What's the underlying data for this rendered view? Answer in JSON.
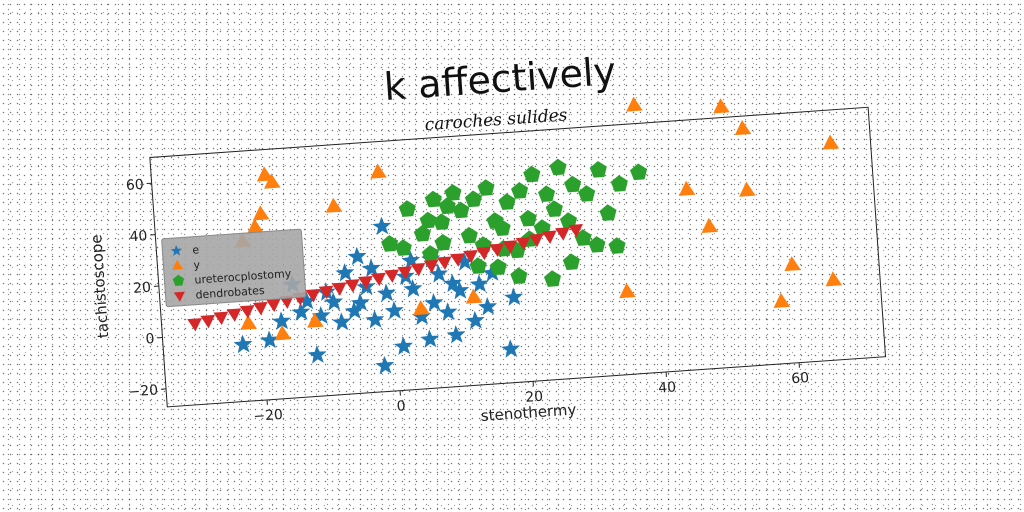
{
  "chart_data": {
    "type": "scatter",
    "title": "k affectively",
    "subtitle": "caroches sulides",
    "xlabel": "stenothermy",
    "ylabel": "tachistoscope",
    "xlim": [
      -35,
      73
    ],
    "ylim": [
      -27,
      70
    ],
    "xticks": [
      -20,
      0,
      20,
      40,
      60
    ],
    "yticks": [
      -20,
      0,
      20,
      40,
      60
    ],
    "grid": false,
    "legend_position": "center-left",
    "series": [
      {
        "name": "e",
        "color": "#1f77b4",
        "marker": "star",
        "points": [
          [
            -23,
            -5
          ],
          [
            -19,
            -4
          ],
          [
            -17,
            3
          ],
          [
            -14,
            6
          ],
          [
            -13,
            10
          ],
          [
            -12,
            -11
          ],
          [
            -11,
            4
          ],
          [
            -10,
            13
          ],
          [
            -9,
            9
          ],
          [
            -8,
            1
          ],
          [
            -7,
            20
          ],
          [
            -6,
            5
          ],
          [
            -5,
            26
          ],
          [
            -4,
            14
          ],
          [
            -3,
            21
          ],
          [
            -3,
            1
          ],
          [
            -2,
            -17
          ],
          [
            -1,
            37
          ],
          [
            0,
            4
          ],
          [
            1,
            -10
          ],
          [
            2,
            17
          ],
          [
            3,
            12
          ],
          [
            4,
            1
          ],
          [
            5,
            -8
          ],
          [
            6,
            6
          ],
          [
            7,
            17
          ],
          [
            8,
            2
          ],
          [
            9,
            -7
          ],
          [
            10,
            10
          ],
          [
            11,
            21
          ],
          [
            12,
            -2
          ],
          [
            13,
            12
          ],
          [
            15,
            16
          ],
          [
            17,
            -14
          ],
          [
            18,
            6
          ],
          [
            6,
            23
          ],
          [
            -5,
            8
          ],
          [
            -15,
            17
          ],
          [
            9,
            13
          ],
          [
            3,
            23
          ],
          [
            14,
            3
          ],
          [
            -1,
            11
          ]
        ]
      },
      {
        "name": "y",
        "color": "#ff7f0e",
        "marker": "triangle",
        "points": [
          [
            -22,
            35
          ],
          [
            -20,
            40
          ],
          [
            -19,
            45
          ],
          [
            -18,
            60
          ],
          [
            -17,
            57
          ],
          [
            -22,
            3
          ],
          [
            -17,
            -2
          ],
          [
            -12,
            2
          ],
          [
            -8,
            46
          ],
          [
            -1,
            58
          ],
          [
            4,
            4
          ],
          [
            12,
            7
          ],
          [
            35,
            5
          ],
          [
            38,
            77
          ],
          [
            45,
            43
          ],
          [
            48,
            28
          ],
          [
            51,
            74
          ],
          [
            54,
            41
          ],
          [
            54,
            65
          ],
          [
            58,
            -3
          ],
          [
            60,
            11
          ],
          [
            66,
            4
          ],
          [
            67,
            57
          ]
        ]
      },
      {
        "name": "ureterocplostomy",
        "color": "#2ca02c",
        "marker": "pentagon",
        "points": [
          [
            0,
            30
          ],
          [
            3,
            43
          ],
          [
            5,
            33
          ],
          [
            6,
            38
          ],
          [
            7,
            46
          ],
          [
            8,
            37
          ],
          [
            9,
            43
          ],
          [
            10,
            48
          ],
          [
            11,
            41
          ],
          [
            12,
            31
          ],
          [
            13,
            45
          ],
          [
            14,
            27
          ],
          [
            15,
            49
          ],
          [
            16,
            36
          ],
          [
            17,
            33
          ],
          [
            18,
            43
          ],
          [
            19,
            24
          ],
          [
            20,
            47
          ],
          [
            21,
            36
          ],
          [
            22,
            53
          ],
          [
            23,
            32
          ],
          [
            24,
            45
          ],
          [
            25,
            39
          ],
          [
            26,
            55
          ],
          [
            27,
            34
          ],
          [
            28,
            48
          ],
          [
            29,
            27
          ],
          [
            30,
            44
          ],
          [
            31,
            24
          ],
          [
            32,
            53
          ],
          [
            33,
            36
          ],
          [
            34,
            23
          ],
          [
            35,
            47
          ],
          [
            38,
            51
          ],
          [
            6,
            25
          ],
          [
            13,
            19
          ],
          [
            16,
            18
          ],
          [
            19,
            14
          ],
          [
            21,
            28
          ],
          [
            24,
            12
          ],
          [
            27,
            18
          ],
          [
            8,
            29
          ],
          [
            17,
            25
          ],
          [
            2,
            28
          ]
        ]
      },
      {
        "name": "dendrobates",
        "color": "#d62728",
        "marker": "triangle_down",
        "points": [
          [
            -30,
            4.5
          ],
          [
            -28,
            5.4
          ],
          [
            -26,
            6.3
          ],
          [
            -24,
            7.2
          ],
          [
            -22,
            8.1
          ],
          [
            -20,
            9.0
          ],
          [
            -18,
            9.9
          ],
          [
            -16,
            10.8
          ],
          [
            -14,
            11.7
          ],
          [
            -12,
            12.6
          ],
          [
            -10,
            13.5
          ],
          [
            -8,
            14.4
          ],
          [
            -6,
            15.3
          ],
          [
            -4,
            16.2
          ],
          [
            -2,
            17.1
          ],
          [
            0,
            18.0
          ],
          [
            2,
            18.9
          ],
          [
            4,
            19.8
          ],
          [
            6,
            20.7
          ],
          [
            8,
            21.6
          ],
          [
            10,
            22.5
          ],
          [
            12,
            23.4
          ],
          [
            14,
            24.3
          ],
          [
            16,
            25.2
          ],
          [
            18,
            26.1
          ],
          [
            20,
            27.0
          ],
          [
            22,
            27.9
          ],
          [
            24,
            28.8
          ],
          [
            26,
            29.7
          ],
          [
            28,
            30.6
          ]
        ]
      }
    ]
  }
}
